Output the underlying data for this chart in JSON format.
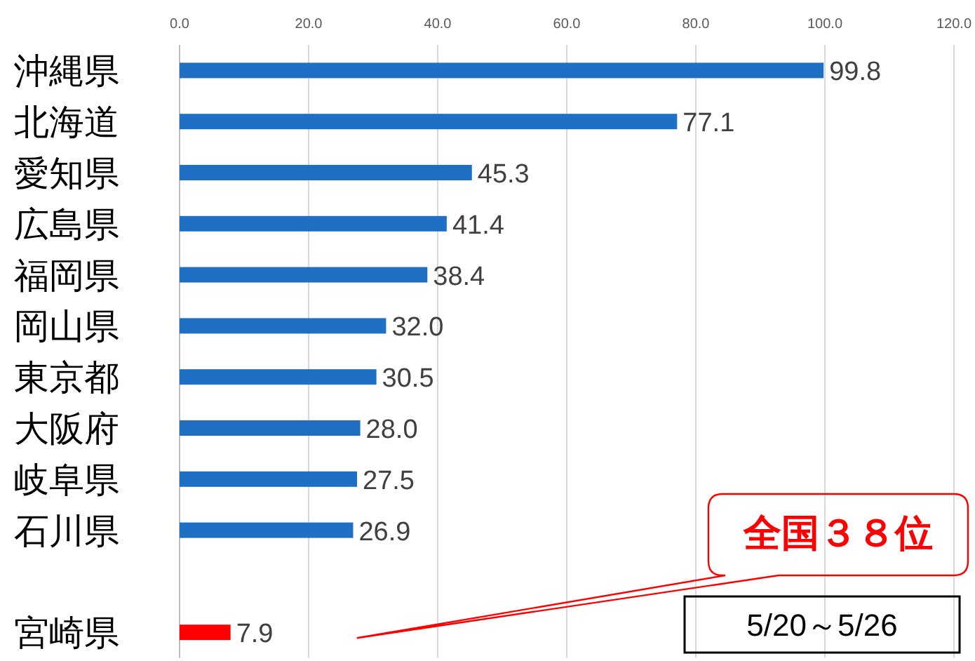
{
  "chart_data": {
    "type": "bar",
    "orientation": "horizontal",
    "categories": [
      "沖縄県",
      "北海道",
      "愛知県",
      "広島県",
      "福岡県",
      "岡山県",
      "東京都",
      "大阪府",
      "岐阜県",
      "石川県",
      null,
      "宮崎県"
    ],
    "values": [
      99.8,
      77.1,
      45.3,
      41.4,
      38.4,
      32.0,
      30.5,
      28.0,
      27.5,
      26.9,
      null,
      7.9
    ],
    "colors": [
      "#1f6fc4",
      "#1f6fc4",
      "#1f6fc4",
      "#1f6fc4",
      "#1f6fc4",
      "#1f6fc4",
      "#1f6fc4",
      "#1f6fc4",
      "#1f6fc4",
      "#1f6fc4",
      null,
      "#ff0000"
    ],
    "value_labels": [
      "99.8",
      "77.1",
      "45.3",
      "41.4",
      "38.4",
      "32.0",
      "30.5",
      "28.0",
      "27.5",
      "26.9",
      null,
      "7.9"
    ],
    "xlim": [
      0,
      120
    ],
    "xticks": [
      {
        "value": 0,
        "label": "0.0"
      },
      {
        "value": 20,
        "label": "20.0"
      },
      {
        "value": 40,
        "label": "40.0"
      },
      {
        "value": 60,
        "label": "60.0"
      },
      {
        "value": 80,
        "label": "80.0"
      },
      {
        "value": 100,
        "label": "100.0"
      },
      {
        "value": 120,
        "label": "120.0"
      }
    ],
    "grid": "x",
    "annotations": [
      "全国３８位",
      "5/20～5/26"
    ]
  }
}
